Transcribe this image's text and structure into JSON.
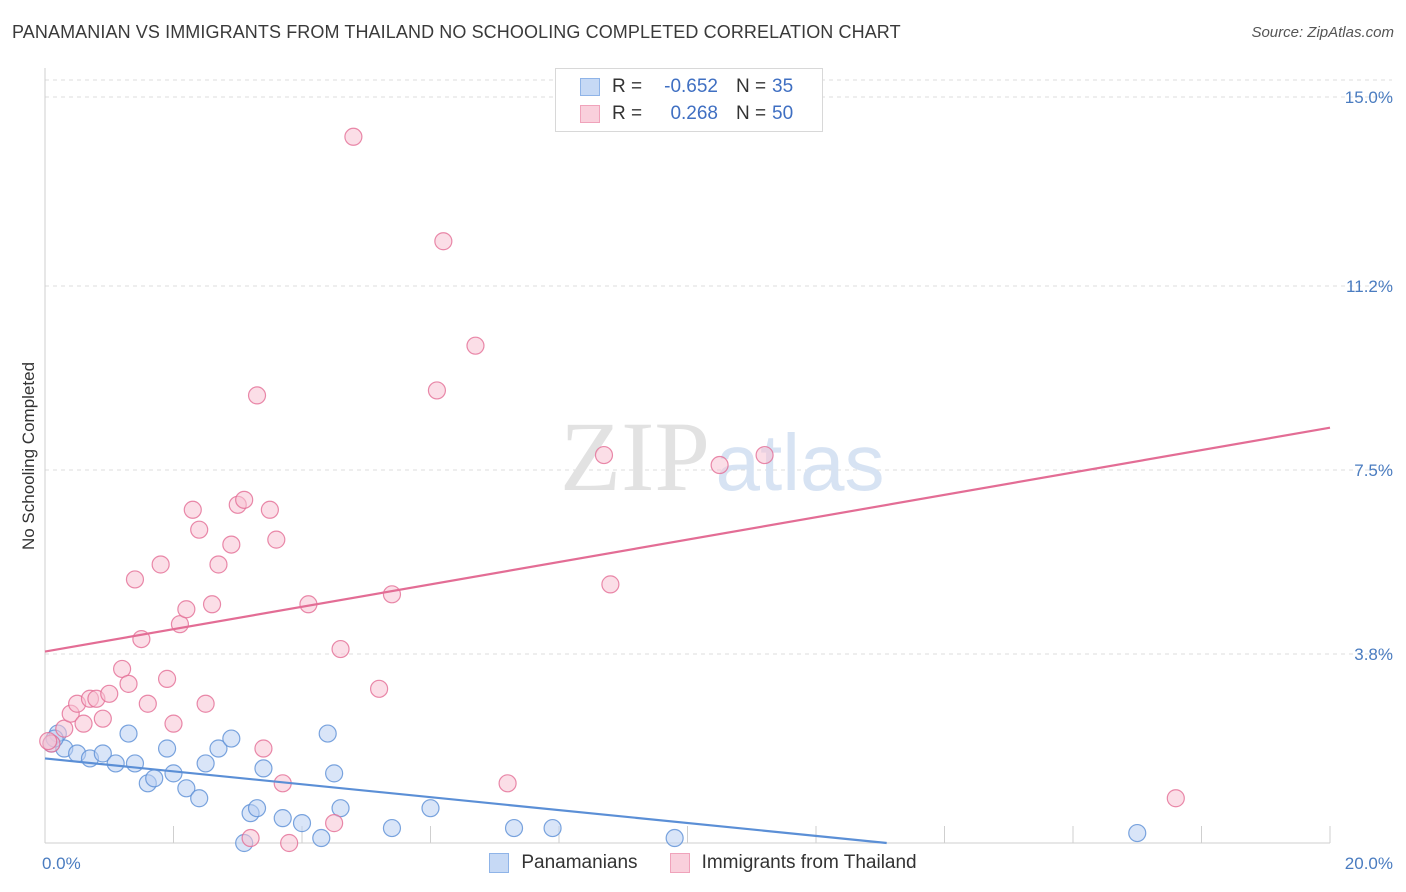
{
  "title": "PANAMANIAN VS IMMIGRANTS FROM THAILAND NO SCHOOLING COMPLETED CORRELATION CHART",
  "source": "Source: ZipAtlas.com",
  "watermark": {
    "zip": "ZIP",
    "atlas": "atlas"
  },
  "legend": {
    "rows": [
      {
        "r_label": "R =",
        "r_value": "-0.652",
        "n_label": "N =",
        "n_value": "35",
        "color": "#8fb4e8",
        "fill": "#c6d9f5"
      },
      {
        "r_label": "R =",
        "r_value": "0.268",
        "n_label": "N =",
        "n_value": "50",
        "color": "#f0a3bb",
        "fill": "#f9d0dc"
      }
    ]
  },
  "bottom_legend": [
    {
      "label": "Panamanians",
      "color": "#8fb4e8",
      "fill": "#c6d9f5"
    },
    {
      "label": "Immigrants from Thailand",
      "color": "#f0a3bb",
      "fill": "#f9d0dc"
    }
  ],
  "chart_data": {
    "type": "scatter",
    "title": "PANAMANIAN VS IMMIGRANTS FROM THAILAND NO SCHOOLING COMPLETED CORRELATION CHART",
    "xlabel": "",
    "ylabel": "No Schooling Completed",
    "xlim": [
      0,
      20
    ],
    "ylim": [
      0,
      15
    ],
    "x_tick_labels": [
      "0.0%",
      "20.0%"
    ],
    "y_ticks": [
      {
        "value": 3.8,
        "label": "3.8%"
      },
      {
        "value": 7.5,
        "label": "7.5%"
      },
      {
        "value": 11.2,
        "label": "11.2%"
      },
      {
        "value": 15.0,
        "label": "15.0%"
      }
    ],
    "grid": "horizontal dashed",
    "legend_position": "top-center",
    "series": [
      {
        "name": "Panamanians",
        "color": "#5b8fd6",
        "fill": "#b9d0f2",
        "trend": {
          "x0": 0,
          "y0": 1.7,
          "x1": 13.1,
          "y1": 0
        },
        "points": [
          [
            0.1,
            2.0
          ],
          [
            0.2,
            2.2
          ],
          [
            0.3,
            1.9
          ],
          [
            0.5,
            1.8
          ],
          [
            0.7,
            1.7
          ],
          [
            0.9,
            1.8
          ],
          [
            1.1,
            1.6
          ],
          [
            1.3,
            2.2
          ],
          [
            1.4,
            1.6
          ],
          [
            1.6,
            1.2
          ],
          [
            1.7,
            1.3
          ],
          [
            1.9,
            1.9
          ],
          [
            2.0,
            1.4
          ],
          [
            2.2,
            1.1
          ],
          [
            2.4,
            0.9
          ],
          [
            2.5,
            1.6
          ],
          [
            2.7,
            1.9
          ],
          [
            2.9,
            2.1
          ],
          [
            3.1,
            0.0
          ],
          [
            3.2,
            0.6
          ],
          [
            3.3,
            0.7
          ],
          [
            3.4,
            1.5
          ],
          [
            3.7,
            0.5
          ],
          [
            4.0,
            0.4
          ],
          [
            4.3,
            0.1
          ],
          [
            4.4,
            2.2
          ],
          [
            4.5,
            1.4
          ],
          [
            4.6,
            0.7
          ],
          [
            5.4,
            0.3
          ],
          [
            6.0,
            0.7
          ],
          [
            7.3,
            0.3
          ],
          [
            7.9,
            0.3
          ],
          [
            9.8,
            0.1
          ],
          [
            17.0,
            0.2
          ],
          [
            0.15,
            2.1
          ]
        ]
      },
      {
        "name": "Immigrants from Thailand",
        "color": "#e36d95",
        "fill": "#f7c3d3",
        "trend": {
          "x0": 0,
          "y0": 3.85,
          "x1": 20,
          "y1": 8.35
        },
        "points": [
          [
            0.1,
            2.0
          ],
          [
            0.3,
            2.3
          ],
          [
            0.4,
            2.6
          ],
          [
            0.5,
            2.8
          ],
          [
            0.6,
            2.4
          ],
          [
            0.7,
            2.9
          ],
          [
            0.8,
            2.9
          ],
          [
            0.9,
            2.5
          ],
          [
            1.0,
            3.0
          ],
          [
            1.2,
            3.5
          ],
          [
            1.3,
            3.2
          ],
          [
            1.4,
            5.3
          ],
          [
            1.5,
            4.1
          ],
          [
            1.6,
            2.8
          ],
          [
            1.8,
            5.6
          ],
          [
            1.9,
            3.3
          ],
          [
            2.0,
            2.4
          ],
          [
            2.1,
            4.4
          ],
          [
            2.2,
            4.7
          ],
          [
            2.3,
            6.7
          ],
          [
            2.4,
            6.3
          ],
          [
            2.5,
            2.8
          ],
          [
            2.6,
            4.8
          ],
          [
            2.7,
            5.6
          ],
          [
            2.9,
            6.0
          ],
          [
            3.0,
            6.8
          ],
          [
            3.1,
            6.9
          ],
          [
            3.2,
            0.1
          ],
          [
            3.3,
            9.0
          ],
          [
            3.4,
            1.9
          ],
          [
            3.5,
            6.7
          ],
          [
            3.6,
            6.1
          ],
          [
            3.7,
            1.2
          ],
          [
            3.8,
            0.0
          ],
          [
            4.1,
            4.8
          ],
          [
            4.5,
            0.4
          ],
          [
            4.6,
            3.9
          ],
          [
            4.8,
            14.2
          ],
          [
            5.2,
            3.1
          ],
          [
            5.4,
            5.0
          ],
          [
            6.1,
            9.1
          ],
          [
            6.2,
            12.1
          ],
          [
            6.7,
            10.0
          ],
          [
            7.2,
            1.2
          ],
          [
            8.7,
            7.8
          ],
          [
            8.8,
            5.2
          ],
          [
            10.5,
            7.6
          ],
          [
            11.2,
            7.8
          ],
          [
            17.6,
            0.9
          ],
          [
            0.05,
            2.05
          ]
        ]
      }
    ]
  }
}
